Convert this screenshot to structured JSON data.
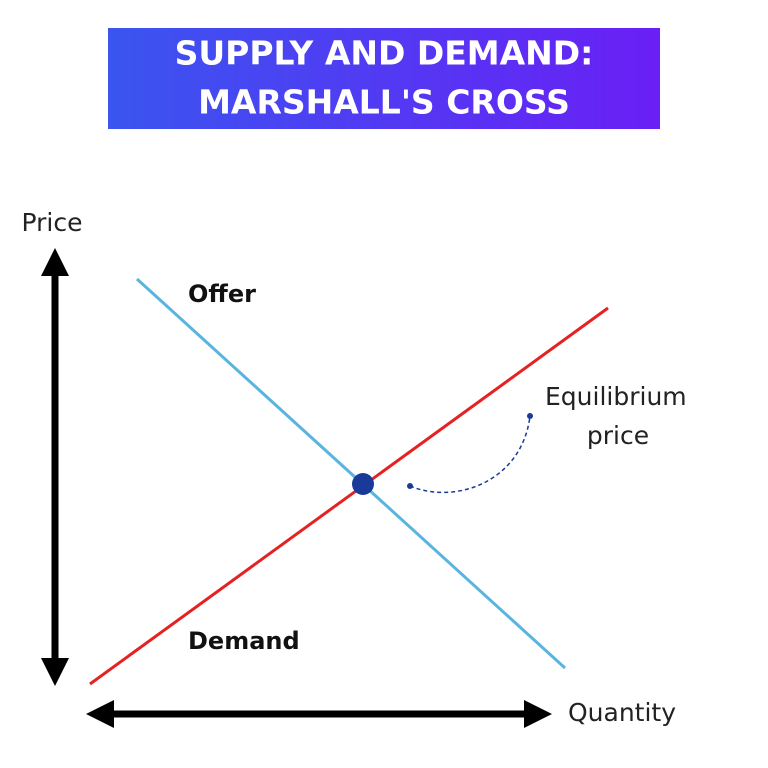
{
  "title": {
    "lines": [
      "SUPPLY AND DEMAND:",
      "MARSHALL'S CROSS"
    ]
  },
  "axes": {
    "y": "Price",
    "x": "Quantity"
  },
  "curves": [
    {
      "label": "Offer"
    },
    {
      "label": "Demand"
    }
  ],
  "annotation": {
    "lines": [
      "Equilibrium",
      "price"
    ]
  }
}
